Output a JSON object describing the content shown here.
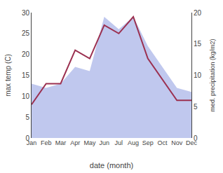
{
  "chart_data": {
    "type": "line",
    "categories": [
      "Jan",
      "Feb",
      "Mar",
      "Apr",
      "May",
      "Jun",
      "Jul",
      "Aug",
      "Sep",
      "Oct",
      "Nov",
      "Dec"
    ],
    "series": [
      {
        "type": "area",
        "color": "#c0c8ee",
        "values": [
          13,
          12,
          13,
          17,
          16,
          29,
          26,
          29,
          22,
          17,
          12,
          11
        ]
      },
      {
        "type": "line",
        "color": "#9B3050",
        "values": [
          8.0,
          13.0,
          13.0,
          21.0,
          19.0,
          27.0,
          25.0,
          29.0,
          19.0,
          14.0,
          9.0,
          9.0
        ]
      }
    ],
    "xlabel": "date (month)",
    "ylabel": "max temp (C)",
    "y2label": "med. precipitation (kg/m2)",
    "ylim": [
      0,
      30
    ],
    "yticks": [
      0,
      5,
      10,
      15,
      20,
      25,
      30
    ],
    "y2lim": [
      0,
      20
    ],
    "y2ticks": [
      0,
      5,
      10,
      15,
      20
    ],
    "grid": false
  }
}
